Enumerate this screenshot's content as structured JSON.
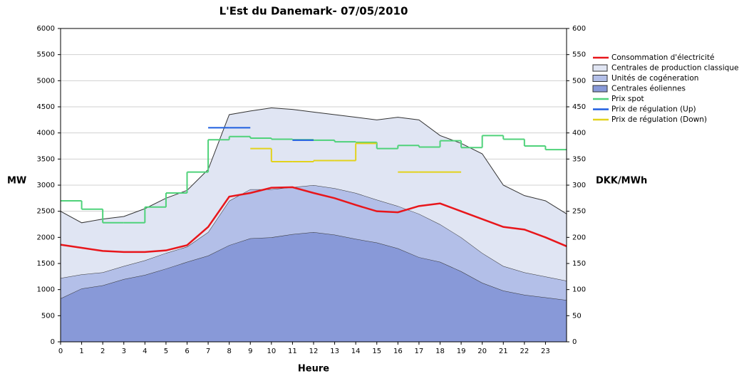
{
  "chart_data": {
    "type": "area",
    "title": "L'Est du Danemark- 07/05/2010",
    "xlabel": "Heure",
    "ylabel": "MW",
    "y2label": "DKK/MWh",
    "x": [
      0,
      1,
      2,
      3,
      4,
      5,
      6,
      7,
      8,
      9,
      10,
      11,
      12,
      13,
      14,
      15,
      16,
      17,
      18,
      19,
      20,
      21,
      22,
      23,
      24
    ],
    "xlim": [
      0,
      24
    ],
    "xticks": [
      0,
      1,
      2,
      3,
      4,
      5,
      6,
      7,
      8,
      9,
      10,
      11,
      12,
      13,
      14,
      15,
      16,
      17,
      18,
      19,
      20,
      21,
      22,
      23
    ],
    "ylim": [
      0,
      6000
    ],
    "yticks": [
      0,
      500,
      1000,
      1500,
      2000,
      2500,
      3000,
      3500,
      4000,
      4500,
      5000,
      5500,
      6000
    ],
    "y2lim": [
      0,
      600
    ],
    "y2ticks": [
      0,
      50,
      100,
      150,
      200,
      250,
      300,
      350,
      400,
      450,
      500,
      550,
      600
    ],
    "grid": true,
    "series": [
      {
        "name": "Consommation d'électricité",
        "type": "line",
        "color": "#e8161b",
        "values": [
          1860,
          1800,
          1740,
          1720,
          1720,
          1750,
          1850,
          2200,
          2780,
          2850,
          2950,
          2960,
          2850,
          2750,
          2620,
          2500,
          2480,
          2600,
          2650,
          2500,
          2350,
          2200,
          2150,
          2000,
          1830
        ]
      },
      {
        "name": "Centrales de production classique",
        "type": "area",
        "color": "#e0e5f3",
        "values": [
          1280,
          990,
          1020,
          950,
          990,
          1050,
          1080,
          1200,
          1650,
          1500,
          1560,
          1490,
          1400,
          1410,
          1450,
          1530,
          1700,
          1800,
          1700,
          1800,
          1900,
          1550,
          1470,
          1450,
          1280
        ]
      },
      {
        "name": "Unités de cogéneration",
        "type": "area",
        "color": "#b3bfe8",
        "values": [
          390,
          270,
          250,
          250,
          280,
          300,
          290,
          450,
          850,
          940,
          920,
          900,
          900,
          890,
          880,
          820,
          810,
          830,
          720,
          650,
          570,
          470,
          430,
          400,
          370
        ]
      },
      {
        "name": "Centrales éoliennes",
        "type": "area",
        "color": "#8899d8",
        "values": [
          830,
          1020,
          1080,
          1200,
          1280,
          1400,
          1530,
          1650,
          1850,
          1980,
          2000,
          2060,
          2100,
          2050,
          1970,
          1900,
          1790,
          1620,
          1530,
          1350,
          1130,
          980,
          900,
          850,
          800
        ]
      },
      {
        "name": "Prix spot",
        "type": "step",
        "axis": "y2",
        "color": "#4fd27a",
        "x": [
          0,
          1,
          2,
          3,
          4,
          5,
          6,
          7,
          8,
          9,
          10,
          11,
          12,
          13,
          14,
          15,
          16,
          17,
          18,
          19,
          20,
          21,
          22,
          23
        ],
        "values": [
          270,
          254,
          228,
          228,
          258,
          285,
          325,
          387,
          393,
          390,
          388,
          387,
          386,
          383,
          382,
          370,
          376,
          373,
          385,
          372,
          395,
          388,
          375,
          368
        ]
      },
      {
        "name": "Prix de régulation (Up)",
        "type": "step",
        "axis": "y2",
        "color": "#1f5fe0",
        "x": [
          0,
          1,
          2,
          3,
          4,
          5,
          6,
          7,
          8,
          9,
          10,
          11,
          12,
          13,
          14,
          15,
          16,
          17,
          18,
          19,
          20,
          21,
          22,
          23
        ],
        "values": [
          null,
          null,
          null,
          null,
          null,
          null,
          null,
          410,
          410,
          null,
          null,
          386,
          null,
          null,
          null,
          null,
          null,
          null,
          null,
          null,
          null,
          null,
          null,
          null
        ]
      },
      {
        "name": "Prix de régulation (Down)",
        "type": "step",
        "axis": "y2",
        "color": "#e2d21c",
        "x": [
          0,
          1,
          2,
          3,
          4,
          5,
          6,
          7,
          8,
          9,
          10,
          11,
          12,
          13,
          14,
          15,
          16,
          17,
          18,
          19,
          20,
          21,
          22,
          23
        ],
        "values": [
          null,
          null,
          null,
          null,
          null,
          null,
          null,
          null,
          null,
          370,
          345,
          345,
          347,
          347,
          380,
          null,
          325,
          325,
          325,
          null,
          null,
          null,
          null,
          null
        ]
      }
    ]
  }
}
